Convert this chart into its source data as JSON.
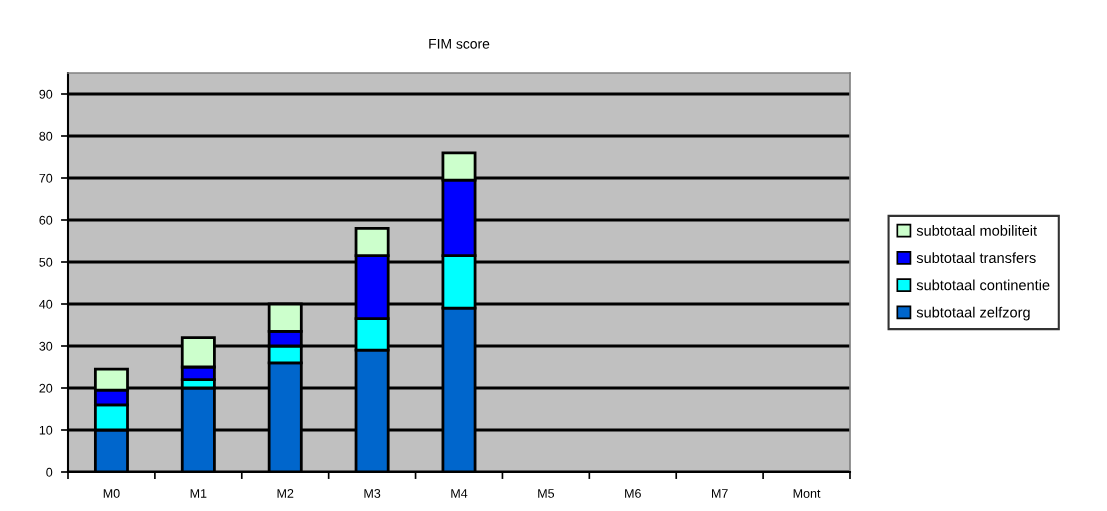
{
  "chart_data": {
    "type": "bar",
    "title": "FIM score",
    "stacked": true,
    "categories": [
      "M0",
      "M1",
      "M2",
      "M3",
      "M4",
      "M5",
      "M6",
      "M7",
      "Mont"
    ],
    "series": [
      {
        "name": "subtotaal zelfzorg",
        "color": "#0066cc",
        "values": [
          10,
          20,
          26,
          29,
          39,
          null,
          null,
          null,
          null
        ]
      },
      {
        "name": "subtotaal continentie",
        "color": "#00ffff",
        "values": [
          6,
          2,
          4,
          7.5,
          12.5,
          null,
          null,
          null,
          null
        ]
      },
      {
        "name": "subtotaal transfers",
        "color": "#0000ff",
        "values": [
          3.5,
          3,
          3.5,
          15,
          18,
          null,
          null,
          null,
          null
        ]
      },
      {
        "name": "subtotaal mobiliteit",
        "color": "#ccffcc",
        "values": [
          5,
          7,
          6.5,
          6.5,
          6.5,
          null,
          null,
          null,
          null
        ]
      }
    ],
    "ylim": [
      0,
      95
    ],
    "yticks": [
      0,
      10,
      20,
      30,
      40,
      50,
      60,
      70,
      80,
      90
    ],
    "grid": "y",
    "legend": "right"
  }
}
